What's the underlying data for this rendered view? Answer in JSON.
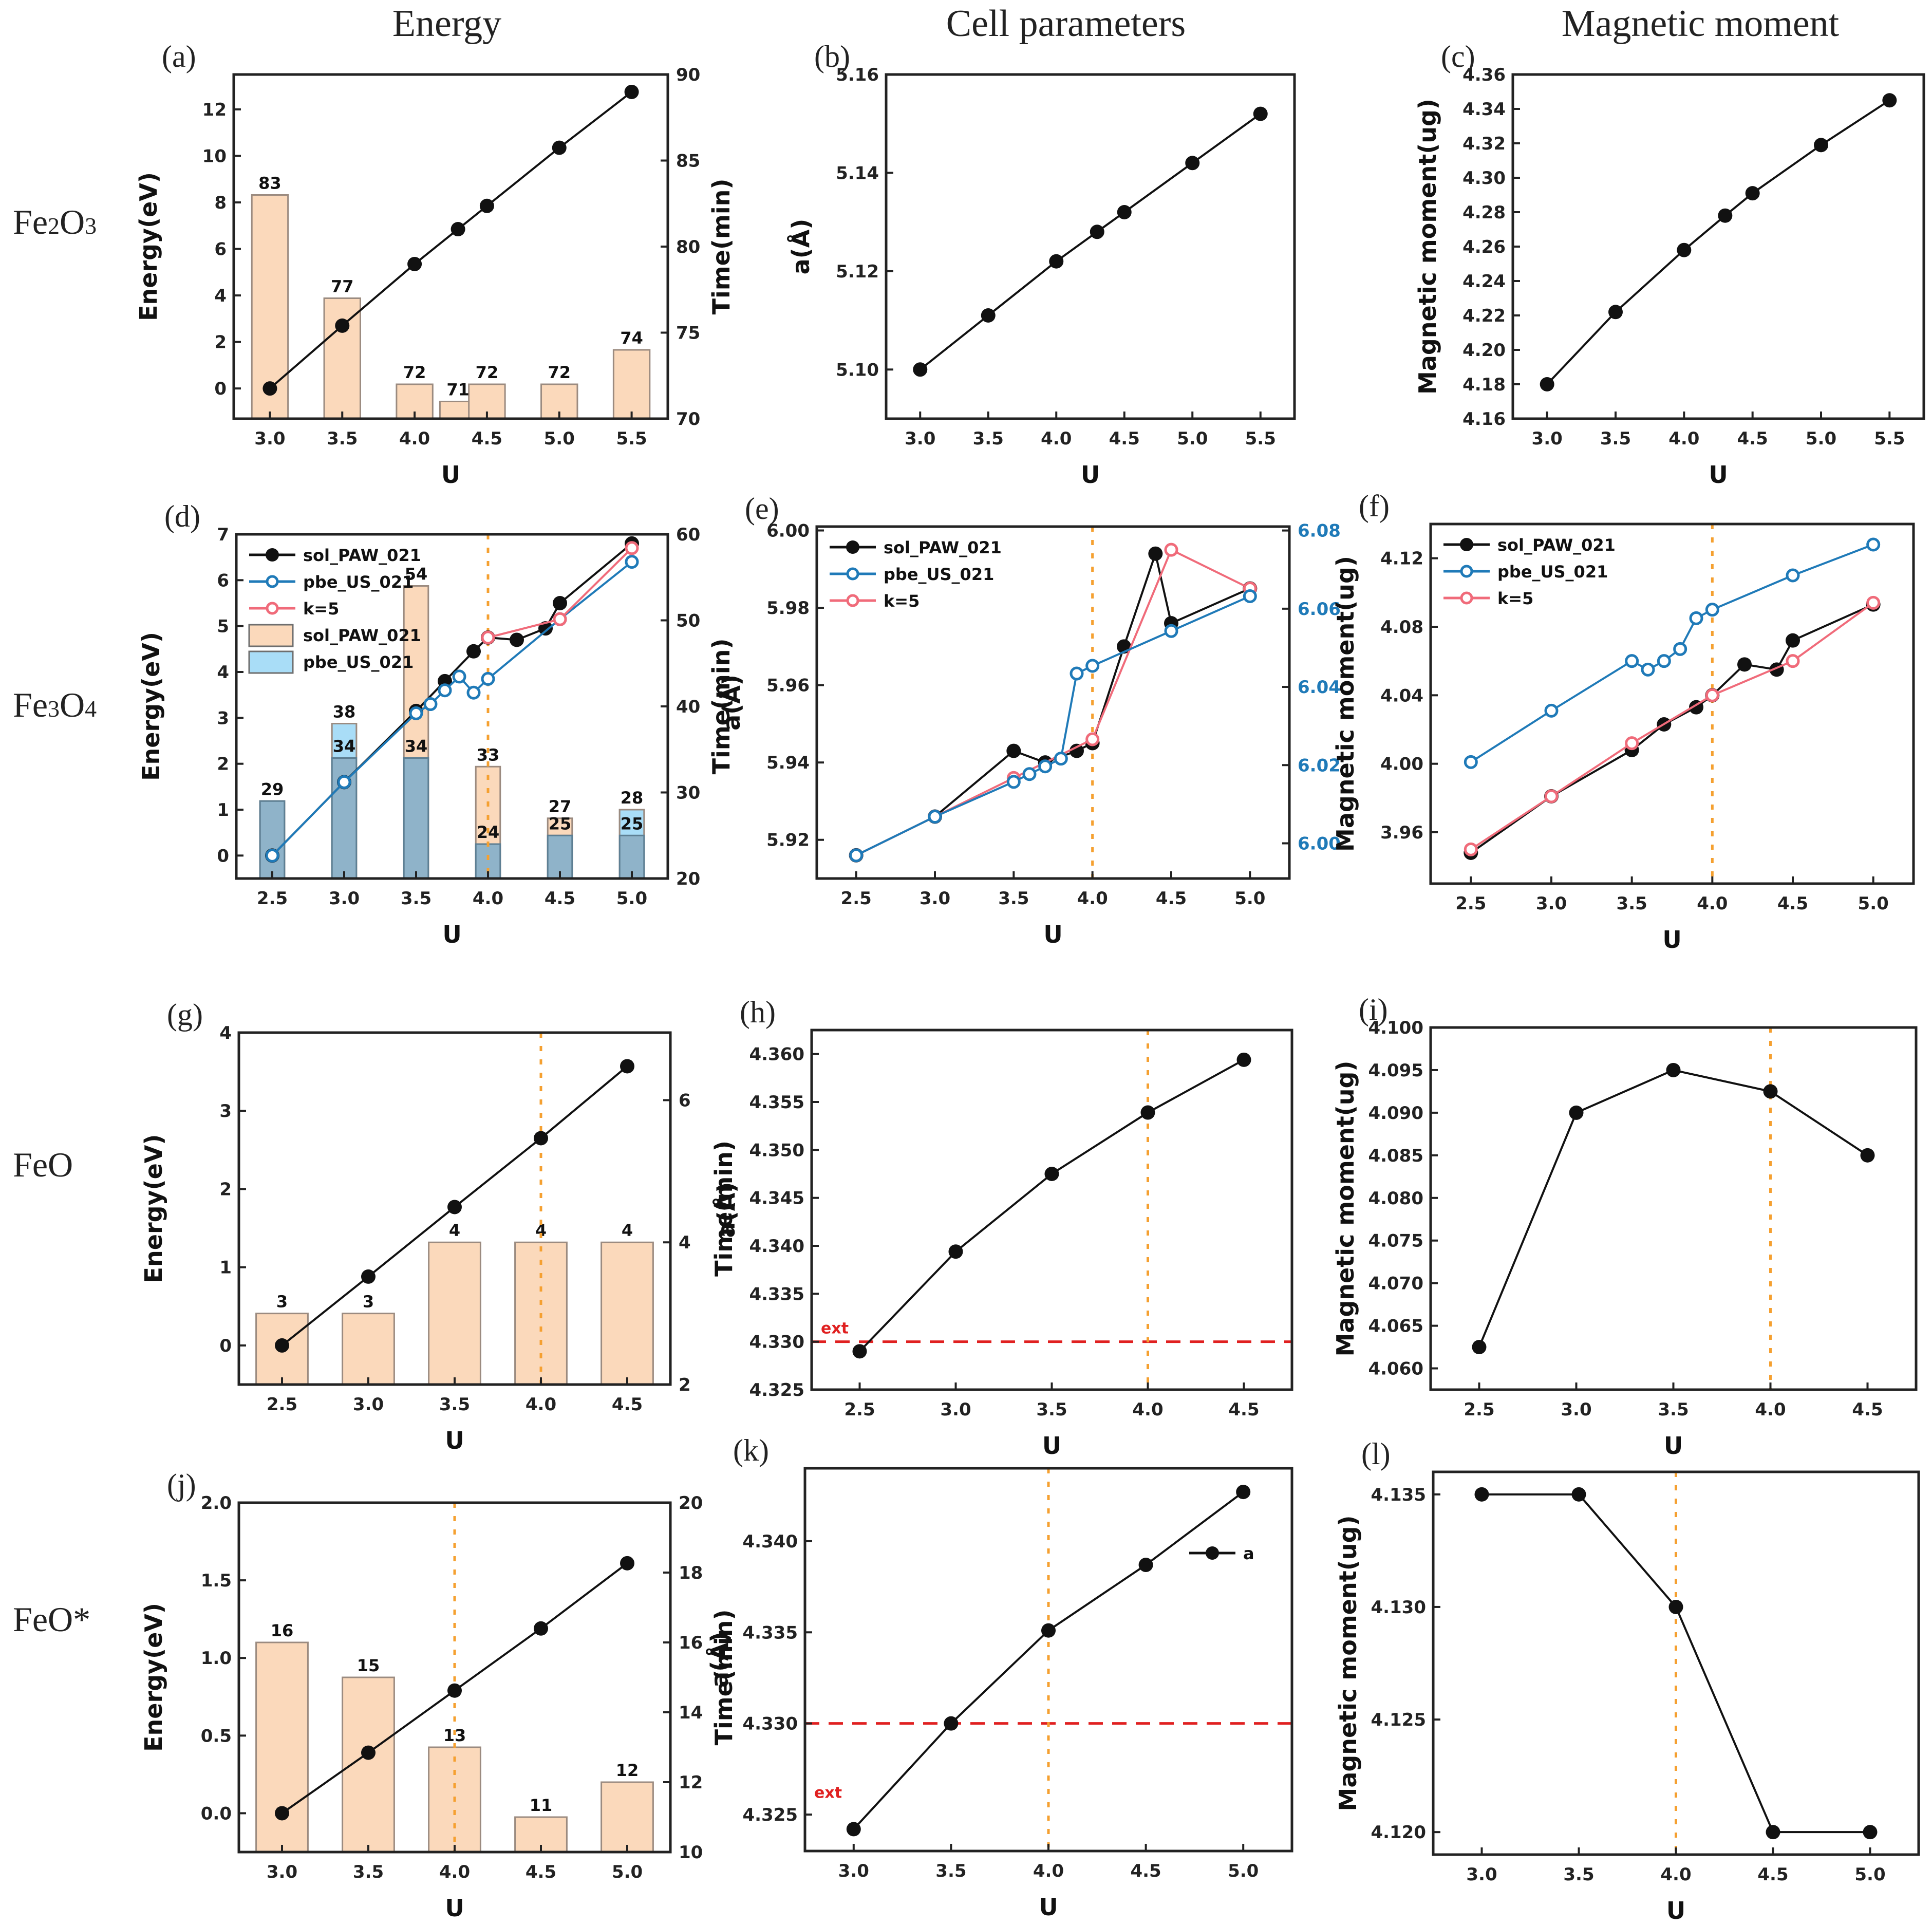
{
  "column_headers": [
    "Energy",
    "Cell parameters",
    "Magnetic moment"
  ],
  "row_labels": [
    {
      "base": "Fe",
      "sub1": "2",
      "mid": "O",
      "sub2": "3"
    },
    {
      "base": "Fe",
      "sub1": "3",
      "mid": "O",
      "sub2": "4"
    },
    {
      "base": "FeO",
      "sub1": "",
      "mid": "",
      "sub2": ""
    },
    {
      "base": "FeO*",
      "sub1": "",
      "mid": "",
      "sub2": ""
    }
  ],
  "colors": {
    "line_black": "#111111",
    "line_blue": "#1f7ab8",
    "line_pink": "#f06b7a",
    "bar_peach": "#fbd9bb",
    "bar_peach_edge": "#9b8b80",
    "bar_blue": "#a9ddf7",
    "bar_overlap": "#8fb3c9",
    "vline_orange": "#f5a030",
    "ext_red": "#e02020"
  },
  "chart_data": [
    {
      "id": "a",
      "label": "(a)",
      "type": "bar+line",
      "xlabel": "U",
      "ylabel": "Energy(eV)",
      "y2label": "Time(min)",
      "xlim": [
        2.75,
        5.75
      ],
      "xticks": [
        3.0,
        3.5,
        4.0,
        4.5,
        5.0,
        5.5
      ],
      "ylim": [
        -1.3,
        13.5
      ],
      "yticks": [
        0,
        2,
        4,
        6,
        8,
        10,
        12
      ],
      "y2lim": [
        70,
        90
      ],
      "y2ticks": [
        70,
        75,
        80,
        85,
        90
      ],
      "bar_width": 0.25,
      "bars": [
        {
          "name": "time",
          "color_key": "bar_peach",
          "x": [
            3.0,
            3.5,
            4.0,
            4.3,
            4.5,
            5.0,
            5.5
          ],
          "values": [
            83,
            77,
            72,
            71,
            72,
            72,
            74
          ],
          "labels": [
            "83",
            "77",
            "72",
            "71",
            "72",
            "72",
            "74"
          ]
        }
      ],
      "series": [
        {
          "name": "Energy",
          "color_key": "line_black",
          "marker": "filled",
          "x": [
            3.0,
            3.5,
            4.0,
            4.3,
            4.5,
            5.0,
            5.5
          ],
          "y": [
            0,
            2.7,
            5.35,
            6.85,
            7.85,
            10.35,
            12.75
          ]
        }
      ]
    },
    {
      "id": "b",
      "label": "(b)",
      "type": "line",
      "xlabel": "U",
      "ylabel": "a(Å)",
      "xlim": [
        2.75,
        5.75
      ],
      "xticks": [
        3.0,
        3.5,
        4.0,
        4.5,
        5.0,
        5.5
      ],
      "ylim": [
        5.09,
        5.16
      ],
      "yticks": [
        5.1,
        5.12,
        5.14,
        5.16
      ],
      "ytick_decimals": 2,
      "series": [
        {
          "name": "a",
          "color_key": "line_black",
          "marker": "filled",
          "x": [
            3.0,
            3.5,
            4.0,
            4.3,
            4.5,
            5.0,
            5.5
          ],
          "y": [
            5.1,
            5.111,
            5.122,
            5.128,
            5.132,
            5.142,
            5.152
          ]
        }
      ]
    },
    {
      "id": "c",
      "label": "(c)",
      "type": "line",
      "xlabel": "U",
      "ylabel": "Magnetic moment(ug)",
      "xlim": [
        2.75,
        5.75
      ],
      "xticks": [
        3.0,
        3.5,
        4.0,
        4.5,
        5.0,
        5.5
      ],
      "ylim": [
        4.16,
        4.36
      ],
      "yticks": [
        4.16,
        4.18,
        4.2,
        4.22,
        4.24,
        4.26,
        4.28,
        4.3,
        4.32,
        4.34,
        4.36
      ],
      "ytick_decimals": 2,
      "series": [
        {
          "name": "Magnetic moment",
          "color_key": "line_black",
          "marker": "filled",
          "x": [
            3.0,
            3.5,
            4.0,
            4.3,
            4.5,
            5.0,
            5.5
          ],
          "y": [
            4.18,
            4.222,
            4.258,
            4.278,
            4.291,
            4.319,
            4.345
          ]
        }
      ]
    },
    {
      "id": "d",
      "label": "(d)",
      "type": "bar+line",
      "xlabel": "U",
      "ylabel": "Energy(eV)",
      "y2label": "Time(min)",
      "xlim": [
        2.25,
        5.25
      ],
      "xticks": [
        2.5,
        3.0,
        3.5,
        4.0,
        4.5,
        5.0
      ],
      "ylim": [
        -0.5,
        7
      ],
      "yticks": [
        0,
        1,
        2,
        3,
        4,
        5,
        6,
        7
      ],
      "y2lim": [
        20,
        60
      ],
      "y2ticks": [
        20,
        30,
        40,
        50,
        60
      ],
      "bar_width": 0.17,
      "vline": 4.0,
      "bars": [
        {
          "name": "sol_PAW_021",
          "color_key": "bar_peach",
          "x": [
            2.5,
            3.0,
            3.5,
            4.0,
            4.5,
            5.0
          ],
          "values": [
            29,
            38,
            54,
            33,
            27,
            28
          ],
          "labels": [
            "29",
            "",
            "54",
            "33",
            "27",
            "28"
          ]
        },
        {
          "name": "pbe_US_021",
          "color_key": "bar_blue",
          "x": [
            2.5,
            3.0,
            3.5,
            4.0,
            4.5,
            5.0
          ],
          "values": [
            29,
            38,
            34,
            24,
            25,
            28
          ],
          "labels": [
            "",
            "38",
            "34",
            "24",
            "25",
            ""
          ],
          "inner_labels": [
            "",
            "34",
            "",
            "",
            "",
            "25"
          ]
        }
      ],
      "overlap_values": [
        29,
        34,
        34,
        24,
        25,
        25
      ],
      "series": [
        {
          "name": "sol_PAW_021",
          "color_key": "line_black",
          "marker": "filled",
          "x": [
            2.5,
            3.0,
            3.5,
            3.7,
            3.9,
            4.0,
            4.2,
            4.4,
            4.5,
            5.0
          ],
          "y": [
            0,
            1.6,
            3.15,
            3.8,
            4.45,
            4.75,
            4.7,
            4.95,
            5.5,
            6.8
          ]
        },
        {
          "name": "pbe_US_021",
          "color_key": "line_blue",
          "marker": "open",
          "x": [
            2.5,
            3.0,
            3.5,
            3.6,
            3.7,
            3.8,
            3.9,
            4.0,
            4.5,
            5.0
          ],
          "y": [
            0,
            1.6,
            3.1,
            3.3,
            3.6,
            3.9,
            3.55,
            3.85,
            5.15,
            6.4
          ]
        },
        {
          "name": "k=5",
          "color_key": "line_pink",
          "marker": "open",
          "x": [
            4.0,
            4.5,
            5.0
          ],
          "y": [
            4.75,
            5.15,
            6.7
          ]
        }
      ],
      "legend": [
        {
          "label": "sol_PAW_021",
          "kind": "line",
          "color_key": "line_black",
          "marker": "filled"
        },
        {
          "label": "pbe_US_021",
          "kind": "line",
          "color_key": "line_blue",
          "marker": "open"
        },
        {
          "label": "k=5",
          "kind": "line",
          "color_key": "line_pink",
          "marker": "open"
        },
        {
          "label": "sol_PAW_021",
          "kind": "box",
          "color_key": "bar_peach"
        },
        {
          "label": "pbe_US_021",
          "kind": "box",
          "color_key": "bar_blue"
        }
      ]
    },
    {
      "id": "e",
      "label": "(e)",
      "type": "line",
      "xlabel": "U",
      "ylabel": "a(Å)",
      "xlim": [
        2.25,
        5.25
      ],
      "xticks": [
        2.5,
        3.0,
        3.5,
        4.0,
        4.5,
        5.0
      ],
      "ylim": [
        5.91,
        6.001
      ],
      "yticks": [
        5.92,
        5.94,
        5.96,
        5.98,
        6.0
      ],
      "ytick_decimals": 2,
      "y2lim": [
        5.991,
        6.081
      ],
      "y2ticks": [
        6.0,
        6.02,
        6.04,
        6.06,
        6.08
      ],
      "y2tick_decimals": 2,
      "y2_color_key": "line_blue",
      "vline": 4.0,
      "series": [
        {
          "name": "sol_PAW_021",
          "color_key": "line_black",
          "marker": "filled",
          "x": [
            2.5,
            3.0,
            3.5,
            3.7,
            3.9,
            4.0,
            4.2,
            4.4,
            4.5,
            5.0
          ],
          "y": [
            5.916,
            5.926,
            5.943,
            5.94,
            5.943,
            5.945,
            5.97,
            5.994,
            5.976,
            5.985
          ]
        },
        {
          "name": "k=5",
          "color_key": "line_pink",
          "marker": "open",
          "x": [
            2.5,
            3.0,
            3.5,
            4.0,
            4.5,
            5.0
          ],
          "y": [
            5.916,
            5.926,
            5.936,
            5.946,
            5.995,
            5.985
          ]
        },
        {
          "name": "pbe_US_021",
          "color_key": "line_blue",
          "marker": "open",
          "x": [
            2.5,
            3.0,
            3.5,
            3.6,
            3.7,
            3.8,
            3.9,
            4.0,
            4.5,
            5.0
          ],
          "y": [
            5.916,
            5.926,
            5.935,
            5.937,
            5.939,
            5.941,
            5.963,
            5.965,
            5.974,
            5.983
          ]
        }
      ],
      "legend": [
        {
          "label": "sol_PAW_021",
          "kind": "line",
          "color_key": "line_black",
          "marker": "filled"
        },
        {
          "label": "pbe_US_021",
          "kind": "line",
          "color_key": "line_blue",
          "marker": "open"
        },
        {
          "label": "k=5",
          "kind": "line",
          "color_key": "line_pink",
          "marker": "open"
        }
      ]
    },
    {
      "id": "f",
      "label": "(f)",
      "type": "line",
      "xlabel": "U",
      "ylabel": "Magnetic moment(ug)",
      "xlim": [
        2.25,
        5.25
      ],
      "xticks": [
        2.5,
        3.0,
        3.5,
        4.0,
        4.5,
        5.0
      ],
      "ylim": [
        3.93,
        4.14
      ],
      "yticks": [
        3.96,
        4.0,
        4.04,
        4.08,
        4.12
      ],
      "ytick_decimals": 2,
      "vline": 4.0,
      "series": [
        {
          "name": "sol_PAW_021",
          "color_key": "line_black",
          "marker": "filled",
          "x": [
            2.5,
            3.0,
            3.5,
            3.7,
            3.9,
            4.0,
            4.2,
            4.4,
            4.5,
            5.0
          ],
          "y": [
            3.948,
            3.981,
            4.008,
            4.023,
            4.033,
            4.04,
            4.058,
            4.055,
            4.072,
            4.093
          ]
        },
        {
          "name": "pbe_US_021",
          "color_key": "line_blue",
          "marker": "open",
          "x": [
            2.5,
            3.0,
            3.5,
            3.6,
            3.7,
            3.8,
            3.9,
            4.0,
            4.5,
            5.0
          ],
          "y": [
            4.001,
            4.031,
            4.06,
            4.055,
            4.06,
            4.067,
            4.085,
            4.09,
            4.11,
            4.128
          ]
        },
        {
          "name": "k=5",
          "color_key": "line_pink",
          "marker": "open",
          "x": [
            2.5,
            3.0,
            3.5,
            4.0,
            4.5,
            5.0
          ],
          "y": [
            3.95,
            3.981,
            4.012,
            4.04,
            4.06,
            4.094
          ]
        }
      ],
      "legend": [
        {
          "label": "sol_PAW_021",
          "kind": "line",
          "color_key": "line_black",
          "marker": "filled"
        },
        {
          "label": "pbe_US_021",
          "kind": "line",
          "color_key": "line_blue",
          "marker": "open"
        },
        {
          "label": "k=5",
          "kind": "line",
          "color_key": "line_pink",
          "marker": "open"
        }
      ]
    },
    {
      "id": "g",
      "label": "(g)",
      "type": "bar+line",
      "xlabel": "U",
      "ylabel": "Energy(eV)",
      "y2label": "Time(min)",
      "xlim": [
        2.25,
        4.75
      ],
      "xticks": [
        2.5,
        3.0,
        3.5,
        4.0,
        4.5
      ],
      "ylim": [
        -0.5,
        4
      ],
      "yticks": [
        0,
        1,
        2,
        3,
        4
      ],
      "y2lim": [
        2,
        6.95
      ],
      "y2ticks": [
        2,
        4,
        6
      ],
      "bar_width": 0.3,
      "vline": 4.0,
      "bars": [
        {
          "name": "time",
          "color_key": "bar_peach",
          "x": [
            2.5,
            3.0,
            3.5,
            4.0,
            4.5
          ],
          "values": [
            3,
            3,
            4,
            4,
            4
          ],
          "labels": [
            "3",
            "3",
            "4",
            "4",
            "4"
          ]
        }
      ],
      "series": [
        {
          "name": "Energy",
          "color_key": "line_black",
          "marker": "filled",
          "x": [
            2.5,
            3.0,
            3.5,
            4.0,
            4.5
          ],
          "y": [
            0,
            0.88,
            1.77,
            2.65,
            3.57
          ]
        }
      ]
    },
    {
      "id": "h",
      "label": "(h)",
      "type": "line",
      "xlabel": "U",
      "ylabel": "a(Å)",
      "xlim": [
        2.25,
        4.75
      ],
      "xticks": [
        2.5,
        3.0,
        3.5,
        4.0,
        4.5
      ],
      "ylim": [
        4.325,
        4.3625
      ],
      "yticks": [
        4.325,
        4.33,
        4.335,
        4.34,
        4.345,
        4.35,
        4.355,
        4.36
      ],
      "ytick_decimals": 3,
      "vline": 4.0,
      "hline": {
        "y": 4.33,
        "label": "ext",
        "label_pos": "above-left"
      },
      "series": [
        {
          "name": "a",
          "color_key": "line_black",
          "marker": "filled",
          "x": [
            2.5,
            3.0,
            3.5,
            4.0,
            4.5
          ],
          "y": [
            4.329,
            4.3394,
            4.3475,
            4.3539,
            4.3594
          ]
        }
      ]
    },
    {
      "id": "i",
      "label": "(i)",
      "type": "line",
      "xlabel": "U",
      "ylabel": "Magnetic moment(ug)",
      "xlim": [
        2.25,
        4.75
      ],
      "xticks": [
        2.5,
        3.0,
        3.5,
        4.0,
        4.5
      ],
      "ylim": [
        4.0575,
        4.1
      ],
      "yticks": [
        4.06,
        4.065,
        4.07,
        4.075,
        4.08,
        4.085,
        4.09,
        4.095,
        4.1
      ],
      "ytick_decimals": 3,
      "vline": 4.0,
      "series": [
        {
          "name": "Magnetic moment",
          "color_key": "line_black",
          "marker": "filled",
          "x": [
            2.5,
            3.0,
            3.5,
            4.0,
            4.5
          ],
          "y": [
            4.0625,
            4.09,
            4.095,
            4.0925,
            4.085
          ]
        }
      ]
    },
    {
      "id": "j",
      "label": "(j)",
      "type": "bar+line",
      "xlabel": "U",
      "ylabel": "Energy(eV)",
      "y2label": "Time(min)",
      "xlim": [
        2.75,
        5.25
      ],
      "xticks": [
        3.0,
        3.5,
        4.0,
        4.5,
        5.0
      ],
      "ylim": [
        -0.25,
        2.0
      ],
      "yticks": [
        0.0,
        0.5,
        1.0,
        1.5,
        2.0
      ],
      "ytick_decimals": 1,
      "y2lim": [
        10,
        20
      ],
      "y2ticks": [
        10,
        12,
        14,
        16,
        18,
        20
      ],
      "bar_width": 0.3,
      "vline": 4.0,
      "bars": [
        {
          "name": "time",
          "color_key": "bar_peach",
          "x": [
            3.0,
            3.5,
            4.0,
            4.5,
            5.0
          ],
          "values": [
            16,
            15,
            13,
            11,
            12
          ],
          "labels": [
            "16",
            "15",
            "13",
            "11",
            "12"
          ]
        }
      ],
      "series": [
        {
          "name": "Energy",
          "color_key": "line_black",
          "marker": "filled",
          "x": [
            3.0,
            3.5,
            4.0,
            4.5,
            5.0
          ],
          "y": [
            0,
            0.39,
            0.79,
            1.19,
            1.61
          ]
        }
      ]
    },
    {
      "id": "k",
      "label": "(k)",
      "type": "line",
      "xlabel": "U",
      "ylabel": "a(Å)",
      "xlim": [
        2.75,
        5.25
      ],
      "xticks": [
        3.0,
        3.5,
        4.0,
        4.5,
        5.0
      ],
      "ylim": [
        4.323,
        4.344
      ],
      "yticks": [
        4.325,
        4.33,
        4.335,
        4.34
      ],
      "ytick_decimals": 3,
      "vline": 4.0,
      "hline": {
        "y": 4.33,
        "label": "ext",
        "label_pos": "below-left"
      },
      "series": [
        {
          "name": "a",
          "color_key": "line_black",
          "marker": "filled",
          "x": [
            3.0,
            3.5,
            4.0,
            4.5,
            5.0
          ],
          "y": [
            4.3242,
            4.33,
            4.3351,
            4.3387,
            4.3427
          ]
        }
      ],
      "legend": [
        {
          "label": "a",
          "kind": "line",
          "color_key": "line_black",
          "marker": "filled"
        }
      ],
      "legend_pos": "right"
    },
    {
      "id": "l",
      "label": "(l)",
      "type": "line",
      "xlabel": "U",
      "ylabel": "Magnetic moment(ug)",
      "xlim": [
        2.75,
        5.25
      ],
      "xticks": [
        3.0,
        3.5,
        4.0,
        4.5,
        5.0
      ],
      "ylim": [
        4.119,
        4.136
      ],
      "yticks": [
        4.12,
        4.125,
        4.13,
        4.135
      ],
      "ytick_decimals": 3,
      "vline": 4.0,
      "series": [
        {
          "name": "Magnetic moment",
          "color_key": "line_black",
          "marker": "filled",
          "x": [
            3.0,
            3.5,
            4.0,
            4.5,
            5.0
          ],
          "y": [
            4.135,
            4.135,
            4.13,
            4.12,
            4.12
          ]
        }
      ]
    }
  ]
}
